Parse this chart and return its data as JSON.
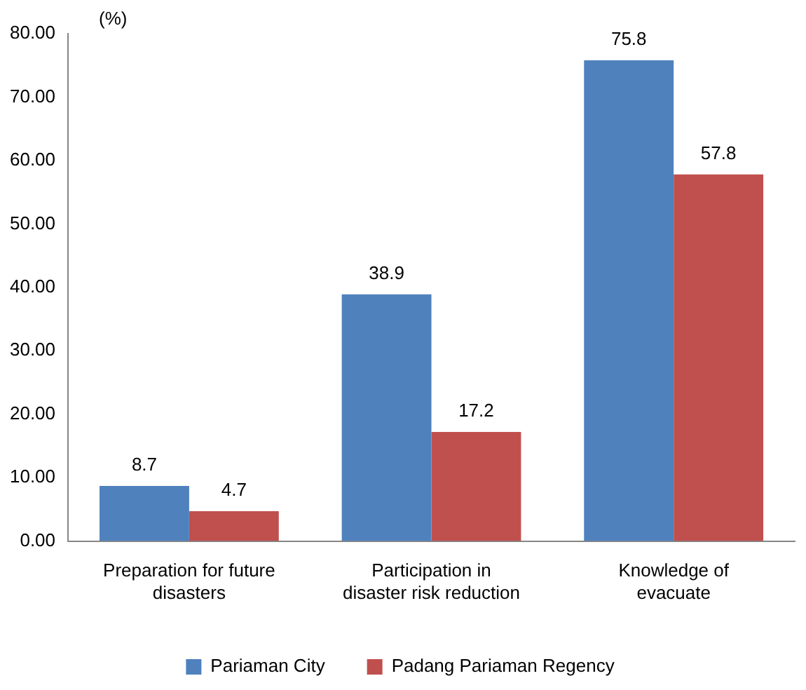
{
  "chart_data": {
    "type": "bar",
    "ylabel": "(%)",
    "categories": [
      "Preparation for future\ndisasters",
      "Participation in\ndisaster risk reduction",
      "Knowledge of\nevacuate"
    ],
    "series": [
      {
        "name": "Pariaman City",
        "color": "#4f81bd",
        "values": [
          8.7,
          38.9,
          75.8
        ]
      },
      {
        "name": "Padang Pariaman Regency",
        "color": "#c0504d",
        "values": [
          4.7,
          17.2,
          57.8
        ]
      }
    ],
    "ylim": [
      0,
      80
    ],
    "yticks": [
      {
        "value": 0,
        "label": "0.00"
      },
      {
        "value": 10,
        "label": "10.00"
      },
      {
        "value": 20,
        "label": "20.00"
      },
      {
        "value": 30,
        "label": "30.00"
      },
      {
        "value": 40,
        "label": "40.00"
      },
      {
        "value": 50,
        "label": "50.00"
      },
      {
        "value": 60,
        "label": "60.00"
      },
      {
        "value": 70,
        "label": "70.00"
      },
      {
        "value": 80,
        "label": "80.00"
      }
    ],
    "grid": false,
    "legend": "bottom",
    "data_labels": true
  }
}
